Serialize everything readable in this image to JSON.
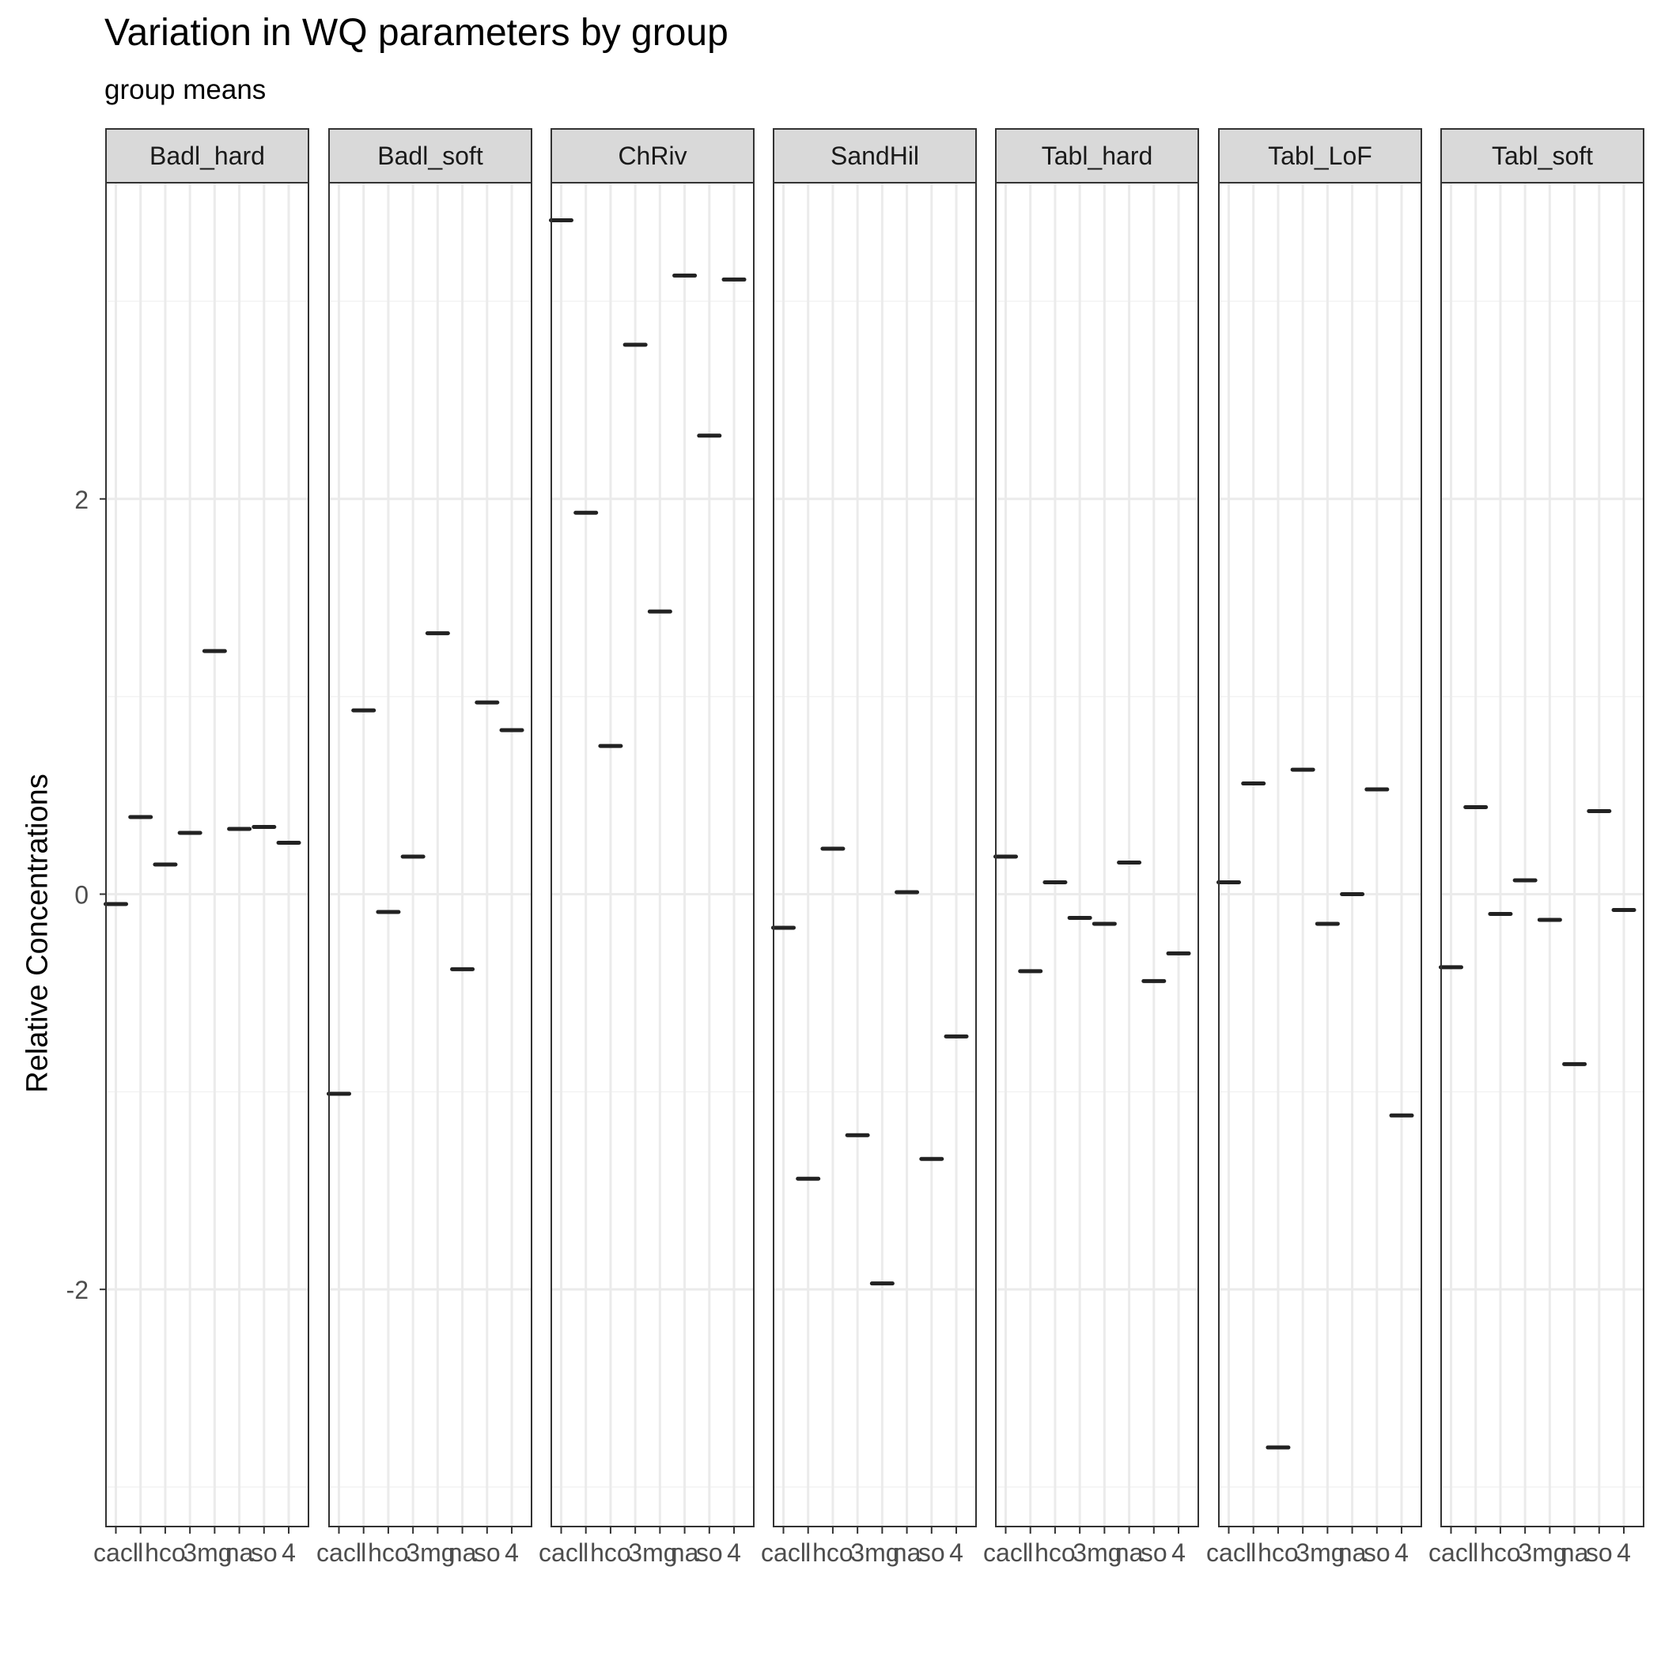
{
  "chart_data": {
    "type": "scatter",
    "title": "Variation in WQ parameters by group",
    "subtitle": "group means",
    "xlabel": "",
    "ylabel": "Relative Concentrations",
    "ylim": [
      -3.2,
      3.6
    ],
    "yticks": [
      -2,
      0,
      2
    ],
    "grid": true,
    "x": [
      "cacl",
      "l",
      "hco3",
      "3",
      "mg",
      "na",
      "so4",
      "4"
    ],
    "x_tick_labels": [
      "cacl",
      "l",
      "hco",
      "3",
      "mg",
      "na",
      "so",
      "4"
    ],
    "facets": [
      {
        "name": "Badl_hard",
        "values": [
          -0.05,
          0.39,
          0.15,
          0.31,
          1.23,
          0.33,
          0.34,
          0.26
        ]
      },
      {
        "name": "Badl_soft",
        "values": [
          -1.01,
          0.93,
          -0.09,
          0.19,
          1.32,
          -0.38,
          0.97,
          0.83
        ]
      },
      {
        "name": "ChRiv",
        "values": [
          3.41,
          1.93,
          0.75,
          2.78,
          1.43,
          3.13,
          2.32,
          3.11
        ]
      },
      {
        "name": "SandHil",
        "values": [
          -0.17,
          -1.44,
          0.23,
          -1.22,
          -1.97,
          0.01,
          -1.34,
          -0.72
        ]
      },
      {
        "name": "Tabl_hard",
        "values": [
          0.19,
          -0.39,
          0.06,
          -0.12,
          -0.15,
          0.16,
          -0.44,
          -0.3
        ]
      },
      {
        "name": "Tabl_LoF",
        "values": [
          0.06,
          0.56,
          -2.8,
          0.63,
          -0.15,
          0.0,
          0.53,
          -1.12
        ]
      },
      {
        "name": "Tabl_soft",
        "values": [
          -0.37,
          0.44,
          -0.1,
          0.07,
          -0.13,
          -0.86,
          0.42,
          -0.08
        ]
      }
    ],
    "colors": {
      "strip_fill": "#d9d9d9",
      "panel_border": "#333333",
      "grid_major": "#ebebeb",
      "grid_minor": "#f3f3f3",
      "mark": "#222222",
      "axis_text": "#4d4d4d"
    }
  }
}
